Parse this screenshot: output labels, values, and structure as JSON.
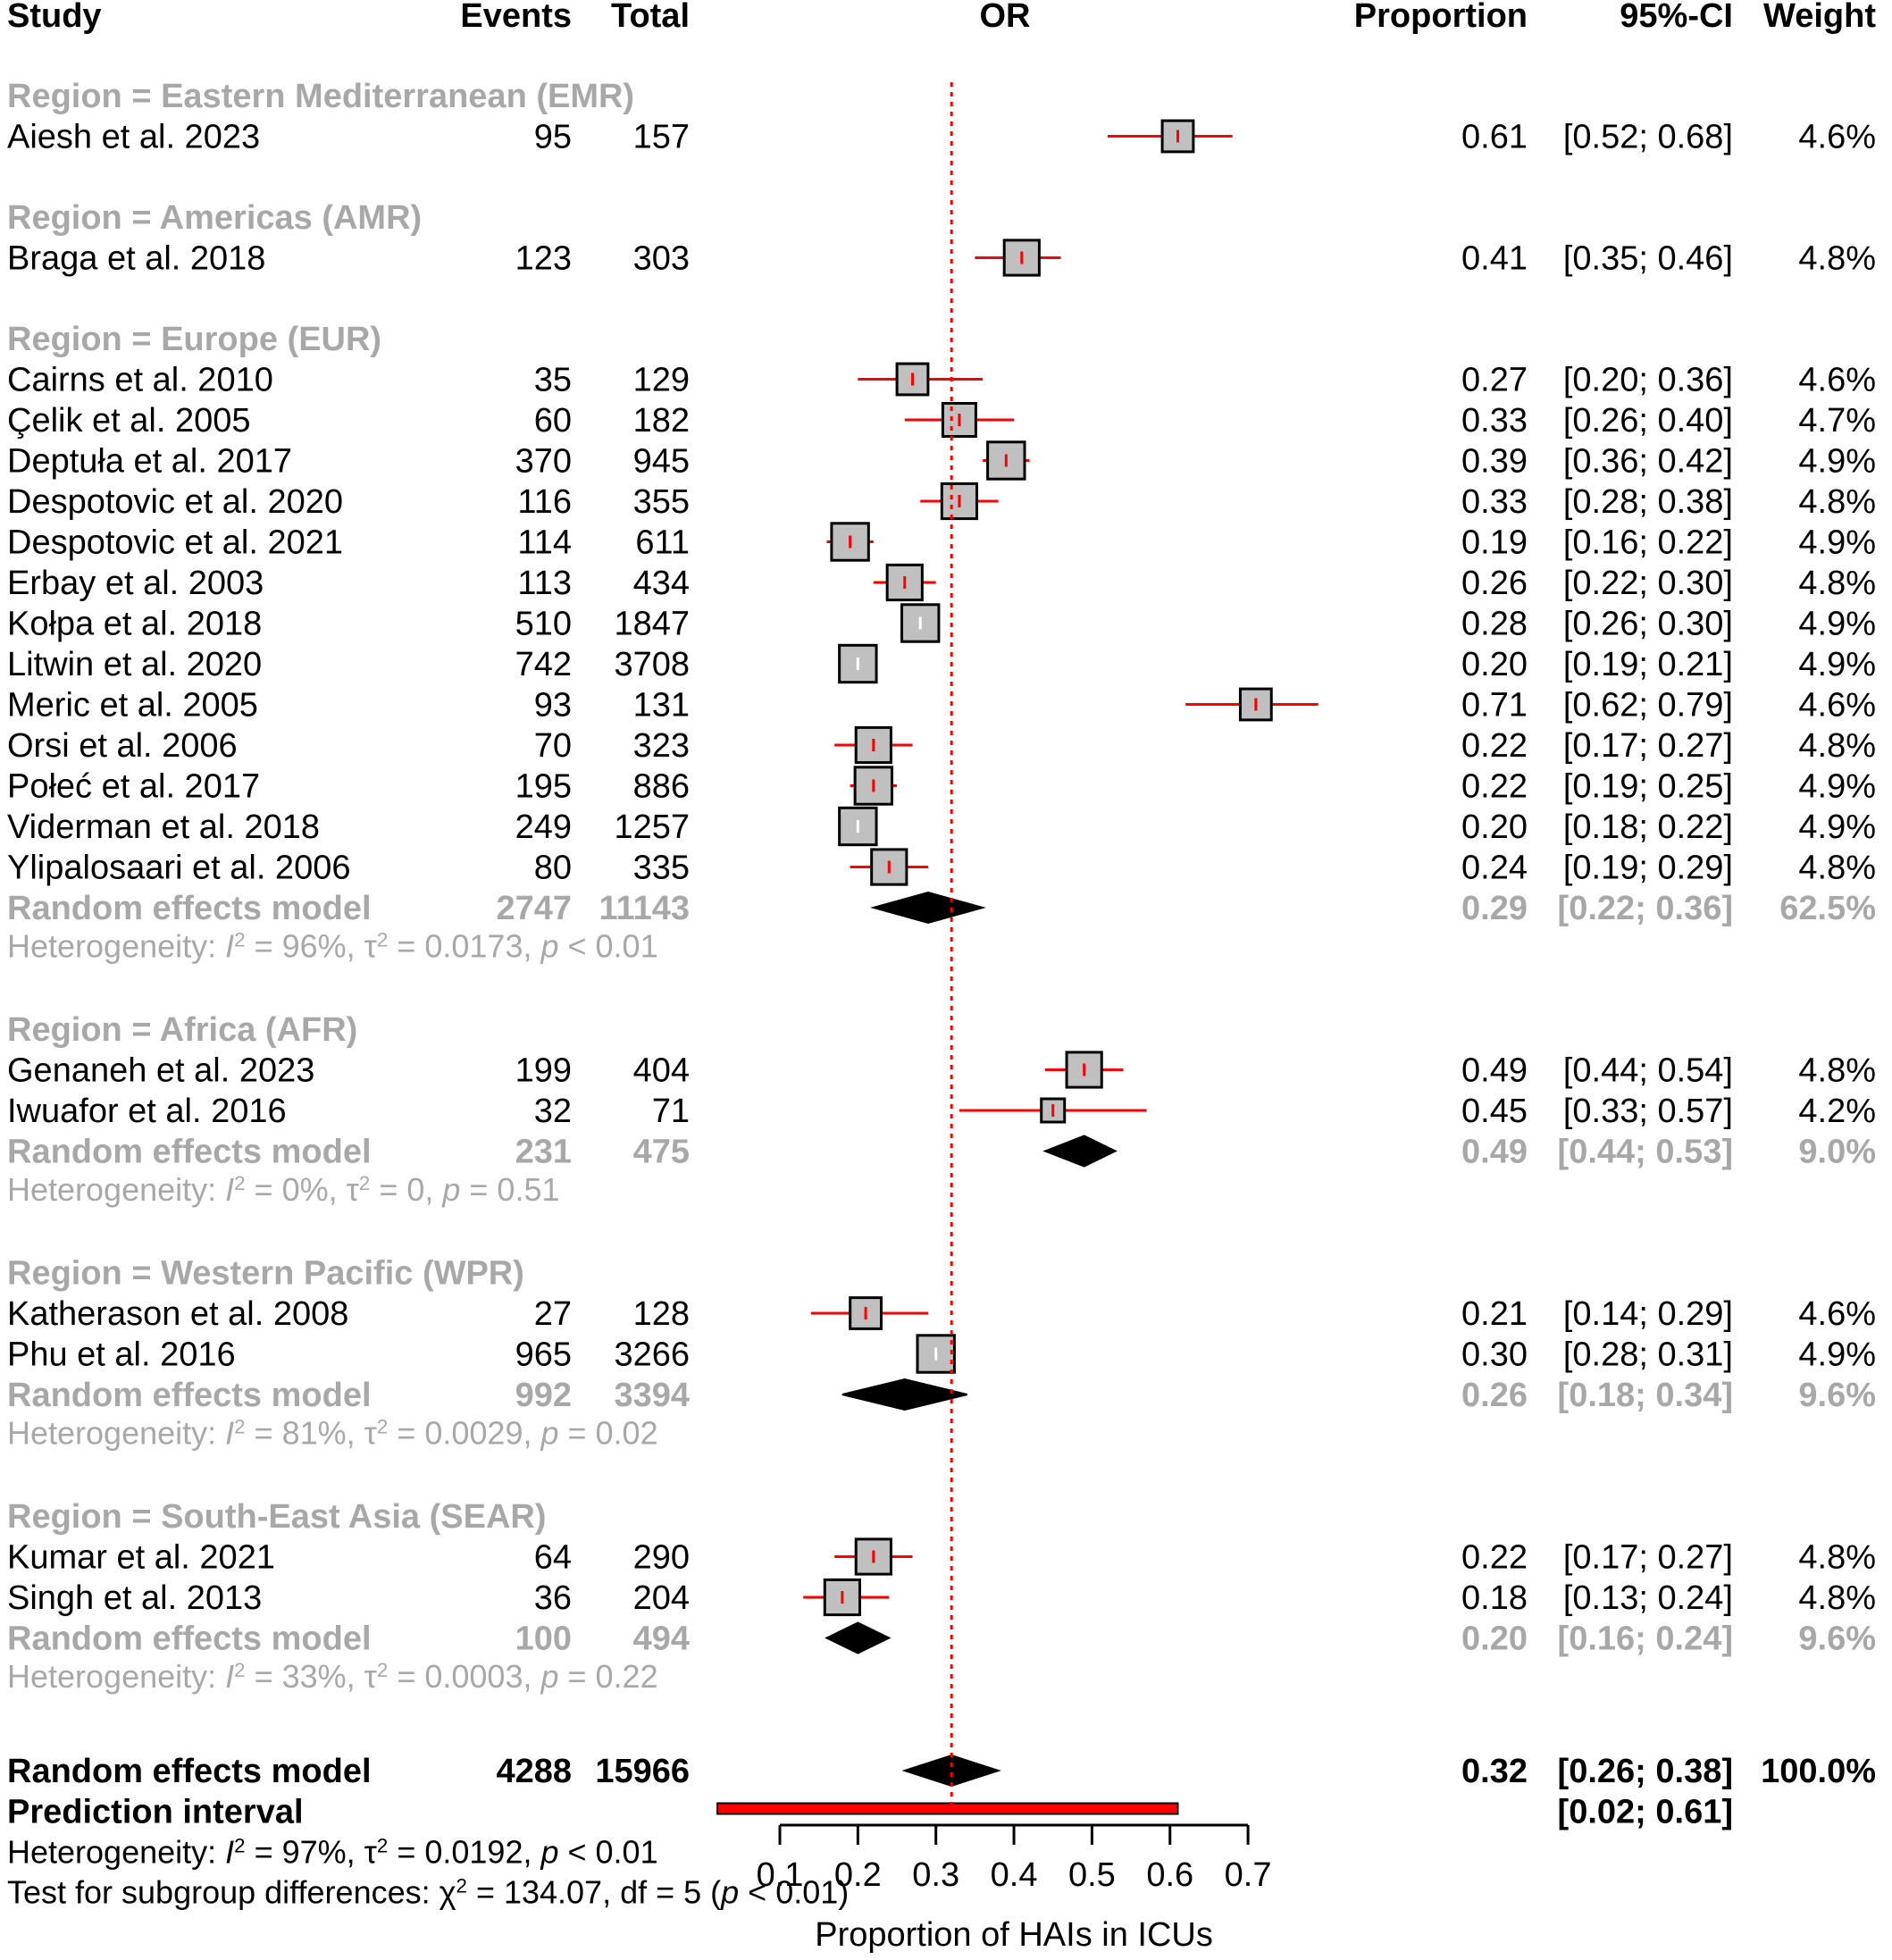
{
  "chart_data": {
    "type": "forest",
    "headers": {
      "study": "Study",
      "events": "Events",
      "total": "Total",
      "effect": "OR",
      "proportion": "Proportion",
      "ci": "95%-CI",
      "weight": "Weight"
    },
    "xlabel": "Proportion of HAIs in ICUs",
    "xlim": [
      0.0,
      0.7
    ],
    "ticks": [
      {
        "value": 0.1,
        "label": "0.1"
      },
      {
        "value": 0.2,
        "label": "0.2"
      },
      {
        "value": 0.3,
        "label": "0.3"
      },
      {
        "value": 0.4,
        "label": "0.4"
      },
      {
        "value": 0.5,
        "label": "0.5"
      },
      {
        "value": 0.6,
        "label": "0.6"
      },
      {
        "value": 0.7,
        "label": "0.7"
      }
    ],
    "reference_line": 0.32,
    "colors": {
      "ci_line": "#ff0000",
      "square": "#c0c0c0",
      "diamond": "#000000",
      "subgroup_text": "#a8a8a8",
      "reference": "#ff0000"
    },
    "groups": [
      {
        "label": "Region = Eastern Mediterranean (EMR)",
        "studies": [
          {
            "study": "Aiesh et al. 2023",
            "events": "95",
            "total": "157",
            "est": 0.61,
            "lo": 0.52,
            "hi": 0.68,
            "ci": "0.61 [0.52; 0.68]",
            "prop": "0.61",
            "ci_text": "[0.52; 0.68]",
            "weight": "4.6%"
          }
        ]
      },
      {
        "label": "Region = Americas (AMR)",
        "studies": [
          {
            "study": "Braga et al. 2018",
            "events": "123",
            "total": "303",
            "est": 0.41,
            "lo": 0.35,
            "hi": 0.46,
            "prop": "0.41",
            "ci_text": "[0.35; 0.46]",
            "weight": "4.8%"
          }
        ]
      },
      {
        "label": "Region = Europe (EUR)",
        "studies": [
          {
            "study": "Cairns et al. 2010",
            "events": "35",
            "total": "129",
            "est": 0.27,
            "lo": 0.2,
            "hi": 0.36,
            "prop": "0.27",
            "ci_text": "[0.20; 0.36]",
            "weight": "4.6%"
          },
          {
            "study": "Çelik et al. 2005",
            "events": "60",
            "total": "182",
            "est": 0.33,
            "lo": 0.26,
            "hi": 0.4,
            "prop": "0.33",
            "ci_text": "[0.26; 0.40]",
            "weight": "4.7%"
          },
          {
            "study": "Deptuła et al. 2017",
            "events": "370",
            "total": "945",
            "est": 0.39,
            "lo": 0.36,
            "hi": 0.42,
            "prop": "0.39",
            "ci_text": "[0.36; 0.42]",
            "weight": "4.9%"
          },
          {
            "study": "Despotovic et al. 2020",
            "events": "116",
            "total": "355",
            "est": 0.33,
            "lo": 0.28,
            "hi": 0.38,
            "prop": "0.33",
            "ci_text": "[0.28; 0.38]",
            "weight": "4.8%"
          },
          {
            "study": "Despotovic et al. 2021",
            "events": "114",
            "total": "611",
            "est": 0.19,
            "lo": 0.16,
            "hi": 0.22,
            "prop": "0.19",
            "ci_text": "[0.16; 0.22]",
            "weight": "4.9%"
          },
          {
            "study": "Erbay et al. 2003",
            "events": "113",
            "total": "434",
            "est": 0.26,
            "lo": 0.22,
            "hi": 0.3,
            "prop": "0.26",
            "ci_text": "[0.22; 0.30]",
            "weight": "4.8%"
          },
          {
            "study": "Kołpa et al. 2018",
            "events": "510",
            "total": "1847",
            "est": 0.28,
            "lo": 0.26,
            "hi": 0.3,
            "prop": "0.28",
            "ci_text": "[0.26; 0.30]",
            "weight": "4.9%"
          },
          {
            "study": "Litwin et al. 2020",
            "events": "742",
            "total": "3708",
            "est": 0.2,
            "lo": 0.19,
            "hi": 0.21,
            "prop": "0.20",
            "ci_text": "[0.19; 0.21]",
            "weight": "4.9%"
          },
          {
            "study": "Meric et al. 2005",
            "events": "93",
            "total": "131",
            "est": 0.71,
            "lo": 0.62,
            "hi": 0.79,
            "prop": "0.71",
            "ci_text": "[0.62; 0.79]",
            "weight": "4.6%"
          },
          {
            "study": "Orsi et al. 2006",
            "events": "70",
            "total": "323",
            "est": 0.22,
            "lo": 0.17,
            "hi": 0.27,
            "prop": "0.22",
            "ci_text": "[0.17; 0.27]",
            "weight": "4.8%"
          },
          {
            "study": "Połeć et al. 2017",
            "events": "195",
            "total": "886",
            "est": 0.22,
            "lo": 0.19,
            "hi": 0.25,
            "prop": "0.22",
            "ci_text": "[0.19; 0.25]",
            "weight": "4.9%"
          },
          {
            "study": "Viderman et al. 2018",
            "events": "249",
            "total": "1257",
            "est": 0.2,
            "lo": 0.18,
            "hi": 0.22,
            "prop": "0.20",
            "ci_text": "[0.18; 0.22]",
            "weight": "4.9%"
          },
          {
            "study": "Ylipalosaari et al. 2006",
            "events": "80",
            "total": "335",
            "est": 0.24,
            "lo": 0.19,
            "hi": 0.29,
            "prop": "0.24",
            "ci_text": "[0.19; 0.29]",
            "weight": "4.8%"
          }
        ],
        "model": {
          "label": "Random effects model",
          "events": "2747",
          "total": "11143",
          "est": 0.29,
          "lo": 0.22,
          "hi": 0.36,
          "prop": "0.29",
          "ci_text": "[0.22; 0.36]",
          "weight": "62.5%"
        },
        "heterogeneity": {
          "i2": "96%",
          "tau2": "0.0173",
          "p": "< 0.01"
        }
      },
      {
        "label": "Region = Africa (AFR)",
        "studies": [
          {
            "study": "Genaneh et al. 2023",
            "events": "199",
            "total": "404",
            "est": 0.49,
            "lo": 0.44,
            "hi": 0.54,
            "prop": "0.49",
            "ci_text": "[0.44; 0.54]",
            "weight": "4.8%"
          },
          {
            "study": "Iwuafor et al. 2016",
            "events": "32",
            "total": "71",
            "est": 0.45,
            "lo": 0.33,
            "hi": 0.57,
            "prop": "0.45",
            "ci_text": "[0.33; 0.57]",
            "weight": "4.2%"
          }
        ],
        "model": {
          "label": "Random effects model",
          "events": "231",
          "total": "475",
          "est": 0.49,
          "lo": 0.44,
          "hi": 0.53,
          "prop": "0.49",
          "ci_text": "[0.44; 0.53]",
          "weight": "9.0%"
        },
        "heterogeneity": {
          "i2": "0%",
          "tau2": "0",
          "p": "= 0.51"
        }
      },
      {
        "label": "Region = Western Pacific (WPR)",
        "studies": [
          {
            "study": "Katherason et al. 2008",
            "events": "27",
            "total": "128",
            "est": 0.21,
            "lo": 0.14,
            "hi": 0.29,
            "prop": "0.21",
            "ci_text": "[0.14; 0.29]",
            "weight": "4.6%"
          },
          {
            "study": "Phu et al. 2016",
            "events": "965",
            "total": "3266",
            "est": 0.3,
            "lo": 0.28,
            "hi": 0.31,
            "prop": "0.30",
            "ci_text": "[0.28; 0.31]",
            "weight": "4.9%"
          }
        ],
        "model": {
          "label": "Random effects model",
          "events": "992",
          "total": "3394",
          "est": 0.26,
          "lo": 0.18,
          "hi": 0.34,
          "prop": "0.26",
          "ci_text": "[0.18; 0.34]",
          "weight": "9.6%"
        },
        "heterogeneity": {
          "i2": "81%",
          "tau2": "0.0029",
          "p": "= 0.02"
        }
      },
      {
        "label": "Region = South-East Asia (SEAR)",
        "studies": [
          {
            "study": "Kumar et al. 2021",
            "events": "64",
            "total": "290",
            "est": 0.22,
            "lo": 0.17,
            "hi": 0.27,
            "prop": "0.22",
            "ci_text": "[0.17; 0.27]",
            "weight": "4.8%"
          },
          {
            "study": "Singh et al. 2013",
            "events": "36",
            "total": "204",
            "est": 0.18,
            "lo": 0.13,
            "hi": 0.24,
            "prop": "0.18",
            "ci_text": "[0.13; 0.24]",
            "weight": "4.8%"
          }
        ],
        "model": {
          "label": "Random effects model",
          "events": "100",
          "total": "494",
          "est": 0.2,
          "lo": 0.16,
          "hi": 0.24,
          "prop": "0.20",
          "ci_text": "[0.16; 0.24]",
          "weight": "9.6%"
        },
        "heterogeneity": {
          "i2": "33%",
          "tau2": "0.0003",
          "p": "= 0.22"
        }
      }
    ],
    "overall": {
      "label": "Random effects model",
      "events": "4288",
      "total": "15966",
      "est": 0.32,
      "lo": 0.26,
      "hi": 0.38,
      "prop": "0.32",
      "ci_text": "[0.26; 0.38]",
      "weight": "100.0%",
      "prediction_label": "Prediction interval",
      "prediction": {
        "lo": 0.02,
        "hi": 0.61,
        "ci_text": "[0.02; 0.61]"
      },
      "heterogeneity": {
        "i2": "97%",
        "tau2": "0.0192",
        "p": "< 0.01"
      },
      "subgroup_test": {
        "label": "Test for subgroup differences:",
        "chi2": "134.07",
        "df": "5",
        "p": "< 0.01"
      }
    }
  }
}
